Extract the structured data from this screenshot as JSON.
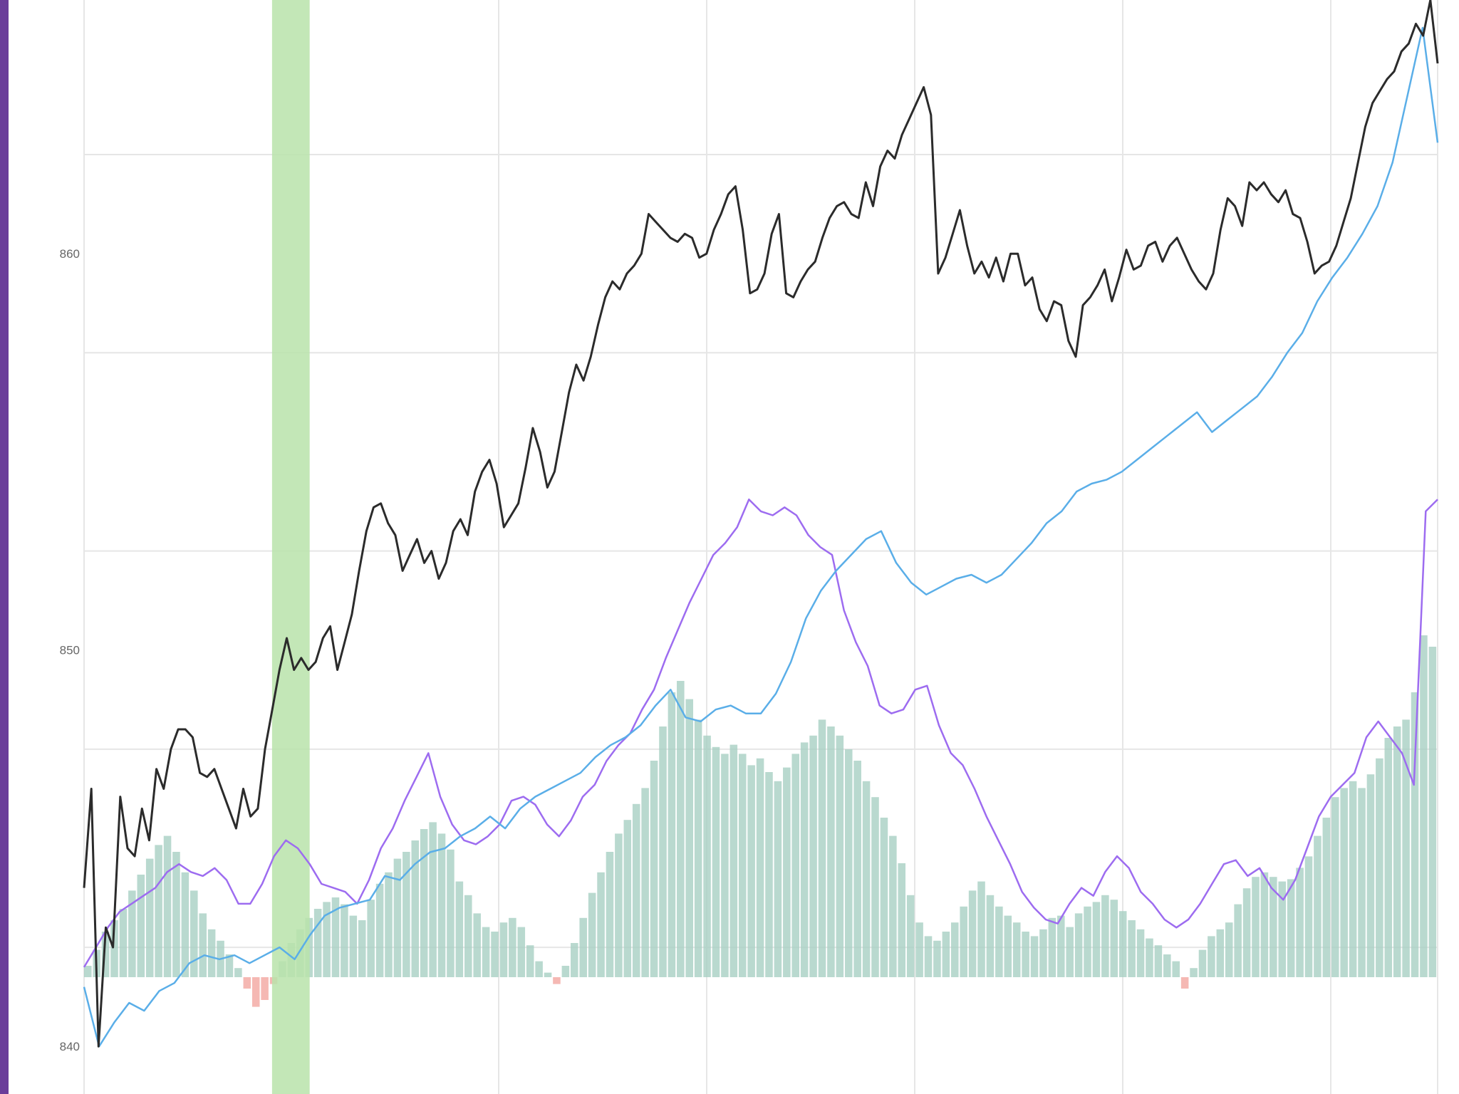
{
  "colors": {
    "window_edge": "#6a3d9a",
    "price_line": "#2b2b2b",
    "blue_line": "#5aaee8",
    "purple_line": "#9d6cf0",
    "hist_positive": "#a8cfc3",
    "hist_negative": "#f2a6a0",
    "highlight_band": "#b9e3aa",
    "grid": "#e6e6e6"
  },
  "chart_data": {
    "type": "line",
    "y_axis": {
      "ticks": [
        "840",
        "850",
        "860"
      ],
      "tick_values": [
        840,
        850,
        860
      ],
      "range": [
        838.8,
        866.4
      ]
    },
    "x_range": [
      0,
      360
    ],
    "grid": true,
    "highlight_band": {
      "x_start": 50,
      "x_end": 60
    },
    "series": [
      {
        "key": "price",
        "color": "#2b2b2b",
        "values": [
          844,
          846.5,
          840,
          843,
          842.5,
          846.3,
          845,
          844.8,
          846,
          845.2,
          847,
          846.5,
          847.5,
          848,
          848,
          847.8,
          846.9,
          846.8,
          847,
          846.5,
          846,
          845.5,
          846.5,
          845.8,
          846,
          847.5,
          848.5,
          849.5,
          850.3,
          849.5,
          849.8,
          849.5,
          849.7,
          850.3,
          850.6,
          849.5,
          850.2,
          850.9,
          852,
          853,
          853.6,
          853.7,
          853.2,
          852.9,
          852,
          852.4,
          852.8,
          852.2,
          852.5,
          851.8,
          852.2,
          853,
          853.3,
          852.9,
          854,
          854.5,
          854.8,
          854.2,
          853.1,
          853.4,
          853.7,
          854.6,
          855.6,
          855,
          854.1,
          854.5,
          855.5,
          856.5,
          857.2,
          856.8,
          857.4,
          858.2,
          858.9,
          859.3,
          859.1,
          859.5,
          859.7,
          860,
          861,
          860.8,
          860.6,
          860.4,
          860.3,
          860.5,
          860.4,
          859.9,
          860,
          860.6,
          861,
          861.5,
          861.7,
          860.6,
          859,
          859.1,
          859.5,
          860.5,
          861,
          859,
          858.9,
          859.3,
          859.6,
          859.8,
          860.4,
          860.9,
          861.2,
          861.3,
          861,
          860.9,
          861.8,
          861.2,
          862.2,
          862.6,
          862.4,
          863,
          863.4,
          863.8,
          864.2,
          863.5,
          859.5,
          859.9,
          860.5,
          861.1,
          860.2,
          859.5,
          859.8,
          859.4,
          859.9,
          859.3,
          860,
          860,
          859.2,
          859.4,
          858.6,
          858.3,
          858.8,
          858.7,
          857.8,
          857.4,
          858.7,
          858.9,
          859.2,
          859.6,
          858.8,
          859.4,
          860.1,
          859.6,
          859.7,
          860.2,
          860.3,
          859.8,
          860.2,
          860.4,
          860,
          859.6,
          859.3,
          859.1,
          859.5,
          860.6,
          861.4,
          861.2,
          860.7,
          861.8,
          861.6,
          861.8,
          861.5,
          861.3,
          861.6,
          861,
          860.9,
          860.3,
          859.5,
          859.7,
          859.8,
          860.2,
          860.8,
          861.4,
          862.3,
          863.2,
          863.8,
          864.1,
          864.4,
          864.6,
          865.1,
          865.3,
          865.8,
          865.5,
          866.4,
          864.8
        ]
      },
      {
        "key": "blue",
        "color": "#5aaee8",
        "values": [
          841.5,
          840,
          840.6,
          841.1,
          840.9,
          841.4,
          841.6,
          842.1,
          842.3,
          842.2,
          842.3,
          842.1,
          842.3,
          842.5,
          842.2,
          842.8,
          843.3,
          843.5,
          843.6,
          843.7,
          844.3,
          844.2,
          844.6,
          844.9,
          845,
          845.3,
          845.5,
          845.8,
          845.5,
          846,
          846.3,
          846.5,
          846.7,
          846.9,
          847.3,
          847.6,
          847.8,
          848.1,
          848.6,
          849,
          848.3,
          848.2,
          848.5,
          848.6,
          848.4,
          848.4,
          848.9,
          849.7,
          850.8,
          851.5,
          852,
          852.4,
          852.8,
          853,
          852.2,
          851.7,
          851.4,
          851.6,
          851.8,
          851.9,
          851.7,
          851.9,
          852.3,
          852.7,
          853.2,
          853.5,
          854,
          854.2,
          854.3,
          854.5,
          854.8,
          855.1,
          855.4,
          855.7,
          856,
          855.5,
          855.8,
          856.1,
          856.4,
          856.9,
          857.5,
          858,
          858.8,
          859.4,
          859.9,
          860.5,
          861.2,
          862.3,
          864,
          865.7,
          862.8
        ]
      },
      {
        "key": "purple",
        "color": "#9d6cf0",
        "values": [
          842,
          842.5,
          843,
          843.4,
          843.6,
          843.8,
          844,
          844.4,
          844.6,
          844.4,
          844.3,
          844.5,
          844.2,
          843.6,
          843.6,
          844.1,
          844.8,
          845.2,
          845,
          844.6,
          844.1,
          844,
          843.9,
          843.6,
          844.2,
          845,
          845.5,
          846.2,
          846.8,
          847.4,
          846.3,
          845.6,
          845.2,
          845.1,
          845.3,
          845.6,
          846.2,
          846.3,
          846.1,
          845.6,
          845.3,
          845.7,
          846.3,
          846.6,
          847.2,
          847.6,
          847.9,
          848.5,
          849,
          849.8,
          850.5,
          851.2,
          851.8,
          852.4,
          852.7,
          853.1,
          853.8,
          853.5,
          853.4,
          853.6,
          853.4,
          852.9,
          852.6,
          852.4,
          851,
          850.2,
          849.6,
          848.6,
          848.4,
          848.5,
          849,
          849.1,
          848.1,
          847.4,
          847.1,
          846.5,
          845.8,
          845.2,
          844.6,
          843.9,
          843.5,
          843.2,
          843.1,
          843.6,
          844,
          843.8,
          844.4,
          844.8,
          844.5,
          843.9,
          843.6,
          843.2,
          843,
          843.2,
          843.6,
          844.1,
          844.6,
          844.7,
          844.3,
          844.5,
          844,
          843.7,
          844.2,
          845,
          845.8,
          846.3,
          846.6,
          846.9,
          847.8,
          848.2,
          847.8,
          847.4,
          846.6,
          853.5,
          853.8
        ]
      },
      {
        "key": "histogram",
        "color": "#a8cfc3",
        "values": [
          0.5,
          1.2,
          2.0,
          2.5,
          3.0,
          3.8,
          4.5,
          5.2,
          5.8,
          6.2,
          5.5,
          4.6,
          3.8,
          2.8,
          2.1,
          1.6,
          1.0,
          0.4,
          -0.5,
          -1.3,
          -1.0,
          -0.3,
          0.7,
          1.5,
          2.1,
          2.6,
          3.0,
          3.3,
          3.5,
          3.2,
          2.7,
          2.5,
          3.4,
          4.1,
          4.6,
          5.2,
          5.5,
          6.0,
          6.5,
          6.8,
          6.3,
          5.6,
          4.2,
          3.6,
          2.8,
          2.2,
          2.0,
          2.4,
          2.6,
          2.2,
          1.4,
          0.7,
          0.2,
          -0.3,
          0.5,
          1.5,
          2.6,
          3.7,
          4.6,
          5.5,
          6.3,
          6.9,
          7.6,
          8.3,
          9.5,
          11.0,
          12.5,
          13.0,
          12.2,
          11.3,
          10.6,
          10.1,
          9.8,
          10.2,
          9.8,
          9.3,
          9.6,
          9.0,
          8.6,
          9.2,
          9.8,
          10.3,
          10.6,
          11.3,
          11.0,
          10.6,
          10.0,
          9.5,
          8.6,
          7.9,
          7.0,
          6.2,
          5.0,
          3.6,
          2.4,
          1.8,
          1.6,
          2.0,
          2.4,
          3.1,
          3.8,
          4.2,
          3.6,
          3.1,
          2.7,
          2.4,
          2.0,
          1.8,
          2.1,
          2.6,
          2.7,
          2.2,
          2.8,
          3.1,
          3.3,
          3.6,
          3.4,
          2.9,
          2.5,
          2.1,
          1.7,
          1.4,
          1.0,
          0.7,
          -0.5,
          0.4,
          1.2,
          1.8,
          2.1,
          2.4,
          3.2,
          3.9,
          4.4,
          4.6,
          4.4,
          4.2,
          4.3,
          4.8,
          5.3,
          6.2,
          7.0,
          7.9,
          8.3,
          8.6,
          8.3,
          8.9,
          9.6,
          10.5,
          11.0,
          11.3,
          12.5,
          15.0,
          14.5
        ]
      }
    ]
  }
}
